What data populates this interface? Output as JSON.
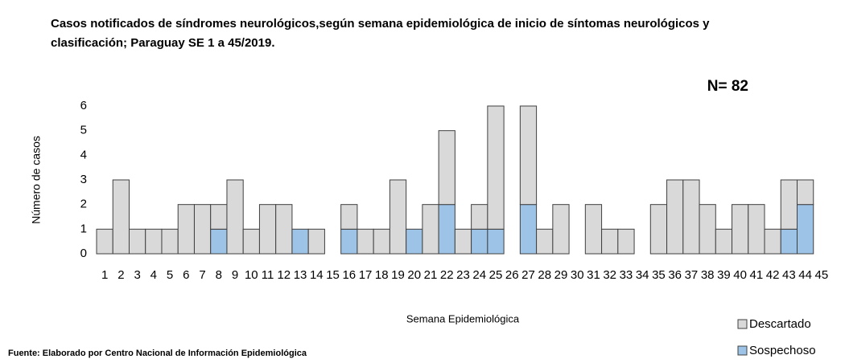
{
  "chart_data": {
    "type": "bar",
    "stacked": true,
    "title": "Casos notificados de síndromes neurológicos,según semana epidemiológica de inicio de síntomas neurológicos y clasificación; Paraguay SE 1 a 45/2019.",
    "annotation": "N= 82",
    "y_label": "Número de casos",
    "x_label": "Semana Epidemiológica",
    "source": "Fuente: Elaborado por Centro Nacional de Información  Epidemiológica",
    "categories": [
      "1",
      "2",
      "3",
      "4",
      "5",
      "6",
      "7",
      "8",
      "9",
      "10",
      "11",
      "12",
      "13",
      "14",
      "15",
      "16",
      "17",
      "18",
      "19",
      "20",
      "21",
      "22",
      "23",
      "24",
      "25",
      "26",
      "27",
      "28",
      "29",
      "30",
      "31",
      "32",
      "33",
      "34",
      "35",
      "36",
      "37",
      "38",
      "39",
      "40",
      "41",
      "42",
      "43",
      "44",
      "45"
    ],
    "series": [
      {
        "name": "Sospechoso",
        "color": "#9dc3e6",
        "values": [
          0,
          0,
          0,
          0,
          0,
          0,
          0,
          1,
          0,
          0,
          0,
          0,
          1,
          0,
          0,
          1,
          0,
          0,
          0,
          1,
          0,
          2,
          0,
          1,
          1,
          0,
          2,
          0,
          0,
          0,
          0,
          0,
          0,
          0,
          0,
          0,
          0,
          0,
          0,
          0,
          0,
          0,
          1,
          2,
          0
        ]
      },
      {
        "name": "Descartado",
        "color": "#d9d9d9",
        "values": [
          1,
          3,
          1,
          1,
          1,
          2,
          2,
          1,
          3,
          1,
          2,
          2,
          0,
          1,
          0,
          1,
          1,
          1,
          3,
          0,
          2,
          3,
          1,
          1,
          5,
          0,
          4,
          1,
          2,
          0,
          2,
          1,
          1,
          0,
          2,
          3,
          3,
          2,
          1,
          2,
          2,
          1,
          2,
          1,
          0
        ]
      }
    ],
    "ylim": [
      0,
      6
    ],
    "yticks": [
      0,
      1,
      2,
      3,
      4,
      5,
      6
    ],
    "grid": false,
    "legend": "bottom-right"
  }
}
